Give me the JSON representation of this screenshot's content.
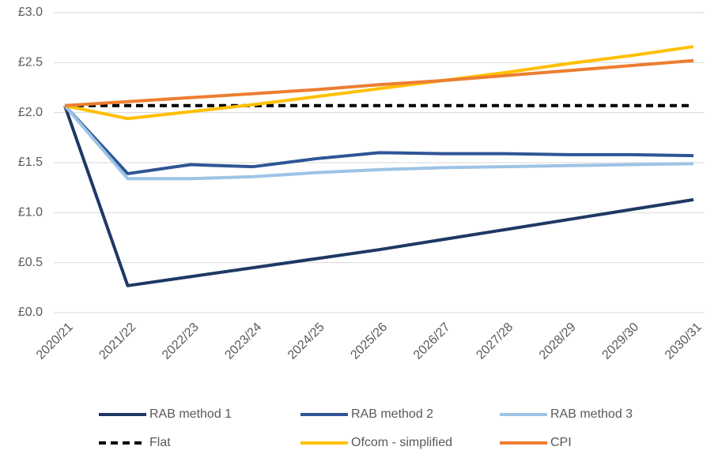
{
  "chart_data": {
    "type": "line",
    "categories": [
      "2020/21",
      "2021/22",
      "2022/23",
      "2023/24",
      "2024/25",
      "2025/26",
      "2026/27",
      "2027/28",
      "2028/29",
      "2029/30",
      "2030/31"
    ],
    "series": [
      {
        "name": "RAB method 1",
        "color": "#1f3864",
        "style": "solid",
        "values": [
          2.07,
          0.27,
          0.36,
          0.45,
          0.54,
          0.63,
          0.73,
          0.83,
          0.93,
          1.03,
          1.13
        ]
      },
      {
        "name": "RAB method 2",
        "color": "#2f5597",
        "style": "solid",
        "values": [
          2.07,
          1.39,
          1.48,
          1.46,
          1.54,
          1.6,
          1.59,
          1.59,
          1.58,
          1.58,
          1.57
        ]
      },
      {
        "name": "RAB method 3",
        "color": "#9dc3e6",
        "style": "solid",
        "values": [
          2.07,
          1.34,
          1.34,
          1.36,
          1.4,
          1.43,
          1.45,
          1.46,
          1.47,
          1.48,
          1.49
        ]
      },
      {
        "name": "Flat",
        "color": "#000000",
        "style": "dashed",
        "values": [
          2.07,
          2.07,
          2.07,
          2.07,
          2.07,
          2.07,
          2.07,
          2.07,
          2.07,
          2.07,
          2.07
        ]
      },
      {
        "name": "Ofcom - simplified",
        "color": "#ffc000",
        "style": "solid",
        "values": [
          2.07,
          1.94,
          2.01,
          2.08,
          2.16,
          2.24,
          2.32,
          2.4,
          2.49,
          2.57,
          2.66
        ]
      },
      {
        "name": "CPI",
        "color": "#ed7d31",
        "style": "solid",
        "values": [
          2.07,
          2.11,
          2.15,
          2.19,
          2.23,
          2.28,
          2.32,
          2.37,
          2.42,
          2.47,
          2.52
        ]
      }
    ],
    "ylim": [
      0,
      3
    ],
    "yticks": [
      {
        "value": 0,
        "label": "£0.0"
      },
      {
        "value": 0.5,
        "label": "£0.5"
      },
      {
        "value": 1,
        "label": "£1.0"
      },
      {
        "value": 1.5,
        "label": "£1.5"
      },
      {
        "value": 2,
        "label": "£2.0"
      },
      {
        "value": 2.5,
        "label": "£2.5"
      },
      {
        "value": 3,
        "label": "£3.0"
      }
    ],
    "grid": true,
    "legend": "bottom"
  }
}
